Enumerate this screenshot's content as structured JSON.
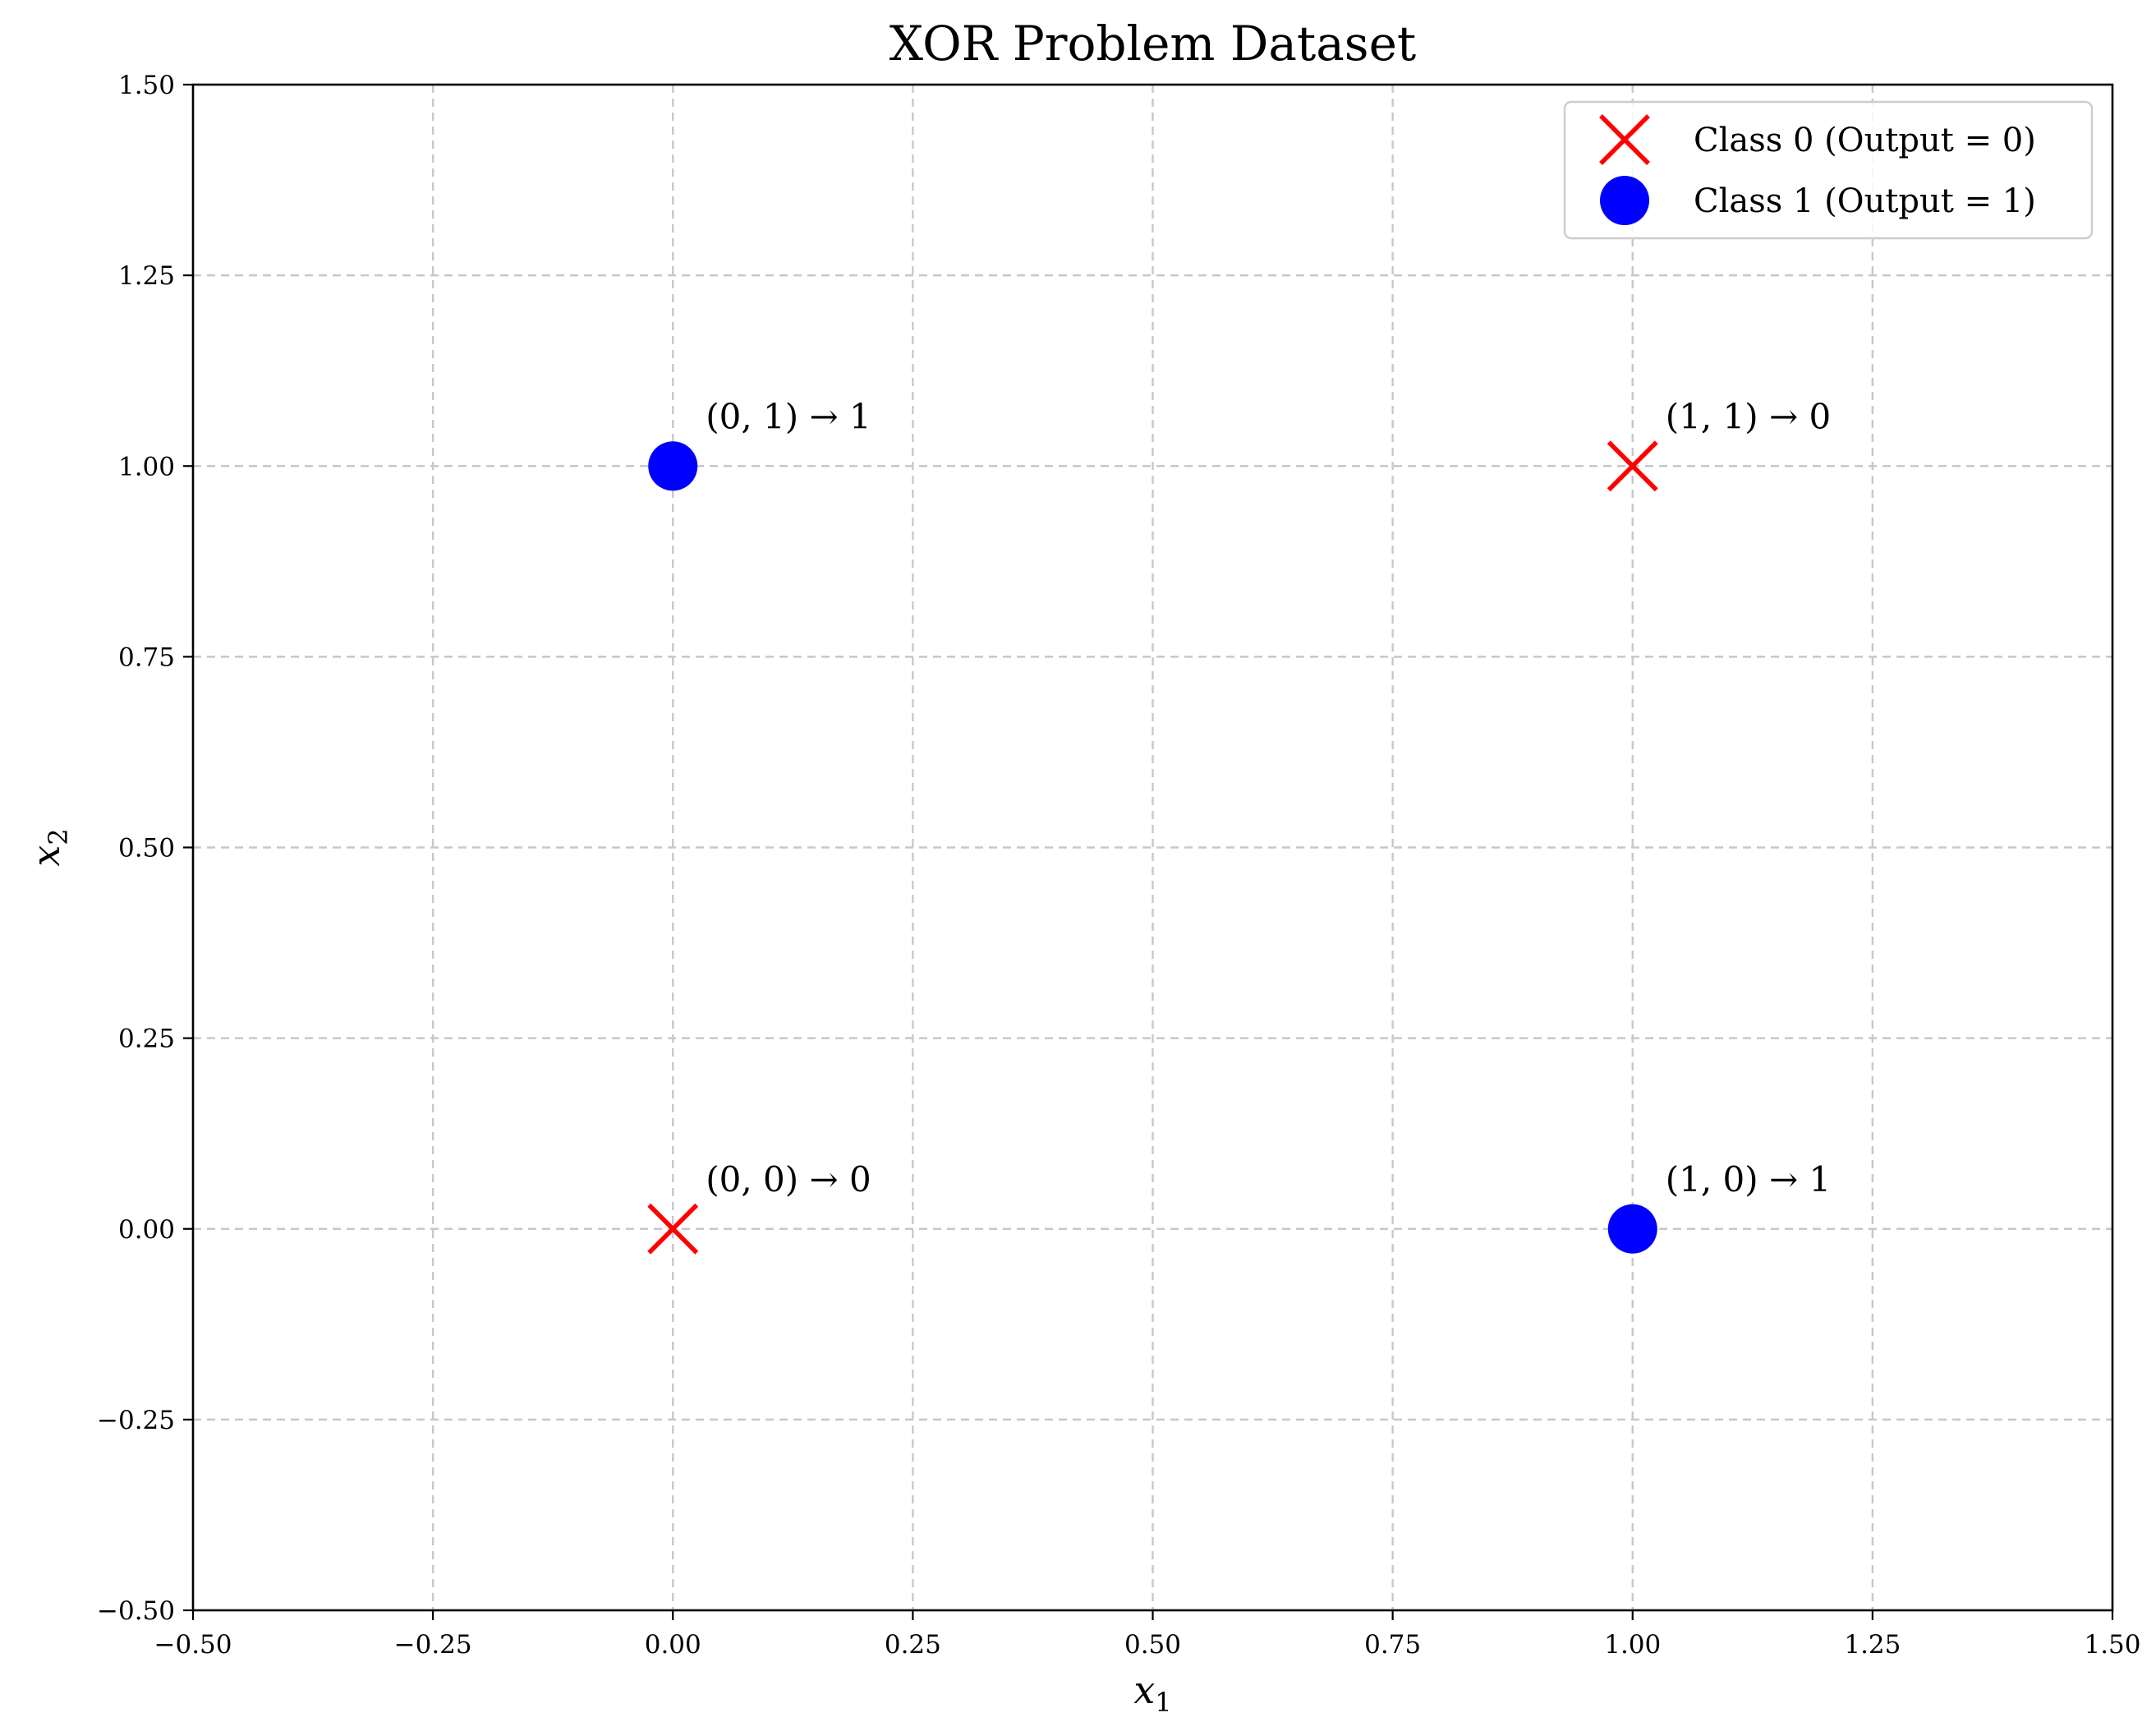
{
  "chart_data": {
    "type": "scatter",
    "title": "XOR Problem Dataset",
    "xlabel": {
      "base": "x",
      "sub": "1"
    },
    "ylabel": {
      "base": "x",
      "sub": "2"
    },
    "xlim": [
      -0.5,
      1.5
    ],
    "ylim": [
      -0.5,
      1.5
    ],
    "xticks": [
      -0.5,
      -0.25,
      0.0,
      0.25,
      0.5,
      0.75,
      1.0,
      1.25,
      1.5
    ],
    "yticks": [
      -0.5,
      -0.25,
      0.0,
      0.25,
      0.5,
      0.75,
      1.0,
      1.25,
      1.5
    ],
    "xtick_labels": [
      "−0.50",
      "−0.25",
      "0.00",
      "0.25",
      "0.50",
      "0.75",
      "1.00",
      "1.25",
      "1.50"
    ],
    "ytick_labels": [
      "−0.50",
      "−0.25",
      "0.00",
      "0.25",
      "0.50",
      "0.75",
      "1.00",
      "1.25",
      "1.50"
    ],
    "grid": true,
    "legend_position": "top-right",
    "series": [
      {
        "name": "Class 0 (Output = 0)",
        "marker": "x",
        "color": "#ff0000",
        "points": [
          {
            "x": 0,
            "y": 0
          },
          {
            "x": 1,
            "y": 1
          }
        ]
      },
      {
        "name": "Class 1 (Output = 1)",
        "marker": "circle",
        "color": "#0000ff",
        "points": [
          {
            "x": 0,
            "y": 1
          },
          {
            "x": 1,
            "y": 0
          }
        ]
      }
    ],
    "annotations": [
      {
        "x": 0,
        "y": 0,
        "text": "(0, 0) → 0"
      },
      {
        "x": 0,
        "y": 1,
        "text": "(0, 1) → 1"
      },
      {
        "x": 1,
        "y": 0,
        "text": "(1, 0) → 1"
      },
      {
        "x": 1,
        "y": 1,
        "text": "(1, 1) → 0"
      }
    ]
  }
}
